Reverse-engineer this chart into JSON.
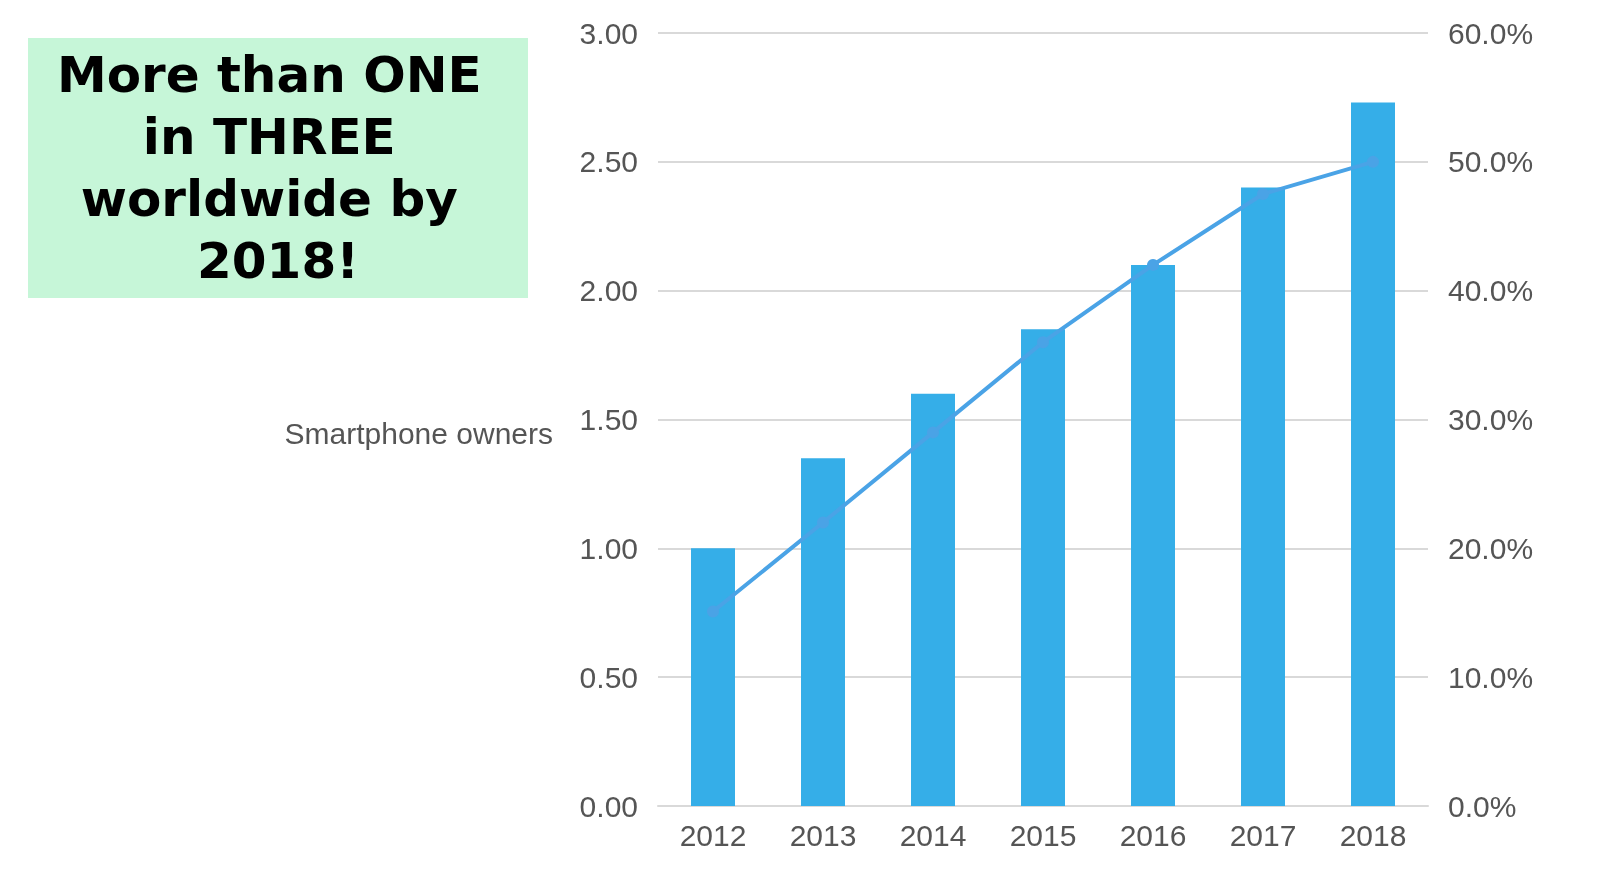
{
  "chart_data": {
    "type": "bar",
    "ylabel": "Smartphone owners",
    "categories": [
      "2012",
      "2013",
      "2014",
      "2015",
      "2016",
      "2017",
      "2018"
    ],
    "series": [
      {
        "color": "#35aee8",
        "values": [
          1.0,
          1.35,
          1.6,
          1.85,
          2.1,
          2.4,
          2.73
        ]
      },
      {
        "type": "line",
        "axis": "y2",
        "color": "#4aa3e6",
        "values": [
          15.1,
          22,
          29,
          36,
          42,
          47.5,
          50
        ]
      }
    ],
    "ylim": [
      0,
      3
    ],
    "yticks": [
      {
        "value": 0,
        "label": "0.00"
      },
      {
        "value": 0.5,
        "label": "0.50"
      },
      {
        "value": 1,
        "label": "1.00"
      },
      {
        "value": 1.5,
        "label": "1.50"
      },
      {
        "value": 2,
        "label": "2.00"
      },
      {
        "value": 2.5,
        "label": "2.50"
      },
      {
        "value": 3,
        "label": "3.00"
      }
    ],
    "y2lim": [
      0,
      60
    ],
    "y2ticks": [
      {
        "value": 0,
        "label": "0.0%"
      },
      {
        "value": 10,
        "label": "10.0%"
      },
      {
        "value": 20,
        "label": "20.0%"
      },
      {
        "value": 30,
        "label": "30.0%"
      },
      {
        "value": 40,
        "label": "40.0%"
      },
      {
        "value": 50,
        "label": "50.0%"
      },
      {
        "value": 60,
        "label": "60.0%"
      }
    ],
    "grid": "y",
    "marker": "circle",
    "annotations": [
      "More than ONE in THREE worldwide by 2018!"
    ]
  }
}
